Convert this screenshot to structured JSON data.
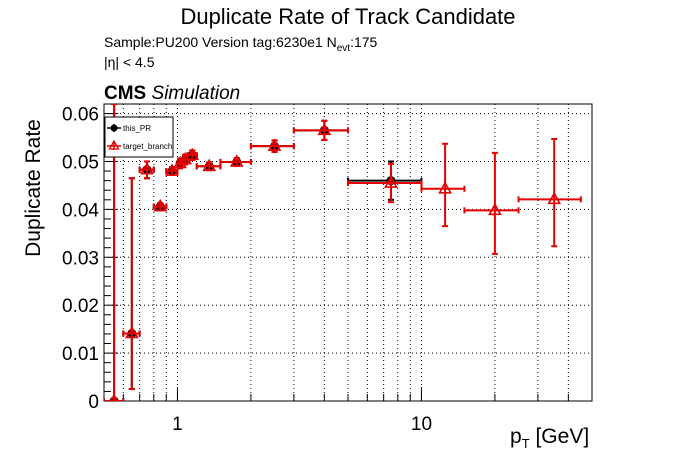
{
  "chart_data": {
    "type": "scatter",
    "title": "Duplicate Rate of Track Candidate",
    "subtitle_line1": "Sample:PU200   Version tag:6230e1  N",
    "subtitle_nevt_sub": "evt",
    "subtitle_nevt_value": ":175",
    "subtitle_line2": "|η| < 4.5",
    "cms_label": "CMS",
    "cms_sublabel": "Simulation",
    "ylabel": "Duplicate Rate",
    "xlabel_main": "p",
    "xlabel_sub": "T",
    "xlabel_unit": " [GeV]",
    "xscale": "log",
    "xlim": [
      0.5,
      50
    ],
    "ylim": [
      0,
      0.062
    ],
    "grid": true,
    "legend_position": "top-left",
    "yticks": [
      0,
      0.01,
      0.02,
      0.03,
      0.04,
      0.05,
      0.06
    ],
    "ytick_labels": [
      "0",
      "0.01",
      "0.02",
      "0.03",
      "0.04",
      "0.05",
      "0.06"
    ],
    "xticks": [
      1,
      10
    ],
    "xtick_labels": [
      "1",
      "10"
    ],
    "series": [
      {
        "name": "this_PR",
        "color": "#000000",
        "marker": "circle",
        "points": [
          {
            "x": 0.55,
            "xlo": 0.5,
            "xhi": 0.6,
            "y": 0.0,
            "ylo": 0.0,
            "yhi": 0.062
          },
          {
            "x": 0.65,
            "xlo": 0.6,
            "xhi": 0.7,
            "y": 0.0141,
            "ylo": 0.0025,
            "yhi": 0.0465
          },
          {
            "x": 0.75,
            "xlo": 0.7,
            "xhi": 0.8,
            "y": 0.0483,
            "ylo": 0.0465,
            "yhi": 0.05
          },
          {
            "x": 0.85,
            "xlo": 0.8,
            "xhi": 0.9,
            "y": 0.0406,
            "ylo": 0.0398,
            "yhi": 0.0413
          },
          {
            "x": 0.95,
            "xlo": 0.9,
            "xhi": 1.0,
            "y": 0.048,
            "ylo": 0.0472,
            "yhi": 0.0488
          },
          {
            "x": 1.025,
            "xlo": 1.0,
            "xhi": 1.05,
            "y": 0.0496,
            "ylo": 0.0486,
            "yhi": 0.0506
          },
          {
            "x": 1.075,
            "xlo": 1.05,
            "xhi": 1.1,
            "y": 0.0504,
            "ylo": 0.0494,
            "yhi": 0.0514
          },
          {
            "x": 1.15,
            "xlo": 1.1,
            "xhi": 1.2,
            "y": 0.0513,
            "ylo": 0.0503,
            "yhi": 0.0523
          },
          {
            "x": 1.35,
            "xlo": 1.2,
            "xhi": 1.5,
            "y": 0.049,
            "ylo": 0.0482,
            "yhi": 0.0498
          },
          {
            "x": 1.75,
            "xlo": 1.5,
            "xhi": 2.0,
            "y": 0.0499,
            "ylo": 0.0491,
            "yhi": 0.0507
          },
          {
            "x": 2.5,
            "xlo": 2.0,
            "xhi": 3.0,
            "y": 0.0532,
            "ylo": 0.052,
            "yhi": 0.0544
          },
          {
            "x": 4.0,
            "xlo": 3.0,
            "xhi": 5.0,
            "y": 0.0565,
            "ylo": 0.0545,
            "yhi": 0.0585
          },
          {
            "x": 7.5,
            "xlo": 5.0,
            "xhi": 10.0,
            "y": 0.046,
            "ylo": 0.042,
            "yhi": 0.05
          }
        ]
      },
      {
        "name": "target_branch",
        "color": "#e60000",
        "marker": "triangle",
        "points": [
          {
            "x": 0.55,
            "xlo": 0.5,
            "xhi": 0.6,
            "y": 0.0,
            "ylo": 0.0,
            "yhi": 0.062
          },
          {
            "x": 0.65,
            "xlo": 0.6,
            "xhi": 0.7,
            "y": 0.0141,
            "ylo": 0.0025,
            "yhi": 0.0465
          },
          {
            "x": 0.75,
            "xlo": 0.7,
            "xhi": 0.8,
            "y": 0.0483,
            "ylo": 0.0465,
            "yhi": 0.05
          },
          {
            "x": 0.85,
            "xlo": 0.8,
            "xhi": 0.9,
            "y": 0.0406,
            "ylo": 0.0398,
            "yhi": 0.0413
          },
          {
            "x": 0.95,
            "xlo": 0.9,
            "xhi": 1.0,
            "y": 0.048,
            "ylo": 0.0472,
            "yhi": 0.0488
          },
          {
            "x": 1.025,
            "xlo": 1.0,
            "xhi": 1.05,
            "y": 0.0496,
            "ylo": 0.0486,
            "yhi": 0.0506
          },
          {
            "x": 1.075,
            "xlo": 1.05,
            "xhi": 1.1,
            "y": 0.0504,
            "ylo": 0.0494,
            "yhi": 0.0514
          },
          {
            "x": 1.15,
            "xlo": 1.1,
            "xhi": 1.2,
            "y": 0.0513,
            "ylo": 0.0503,
            "yhi": 0.0523
          },
          {
            "x": 1.35,
            "xlo": 1.2,
            "xhi": 1.5,
            "y": 0.049,
            "ylo": 0.0482,
            "yhi": 0.0498
          },
          {
            "x": 1.75,
            "xlo": 1.5,
            "xhi": 2.0,
            "y": 0.0499,
            "ylo": 0.0491,
            "yhi": 0.0507
          },
          {
            "x": 2.5,
            "xlo": 2.0,
            "xhi": 3.0,
            "y": 0.0532,
            "ylo": 0.052,
            "yhi": 0.0544
          },
          {
            "x": 4.0,
            "xlo": 3.0,
            "xhi": 5.0,
            "y": 0.0565,
            "ylo": 0.0545,
            "yhi": 0.0585
          },
          {
            "x": 7.5,
            "xlo": 5.0,
            "xhi": 10.0,
            "y": 0.0455,
            "ylo": 0.0415,
            "yhi": 0.0495
          },
          {
            "x": 12.5,
            "xlo": 10.0,
            "xhi": 15.0,
            "y": 0.0443,
            "ylo": 0.0365,
            "yhi": 0.0537
          },
          {
            "x": 20.0,
            "xlo": 15.0,
            "xhi": 25.0,
            "y": 0.0398,
            "ylo": 0.0307,
            "yhi": 0.0518
          },
          {
            "x": 35.0,
            "xlo": 25.0,
            "xhi": 45.0,
            "y": 0.0421,
            "ylo": 0.0323,
            "yhi": 0.0547
          }
        ]
      }
    ]
  }
}
